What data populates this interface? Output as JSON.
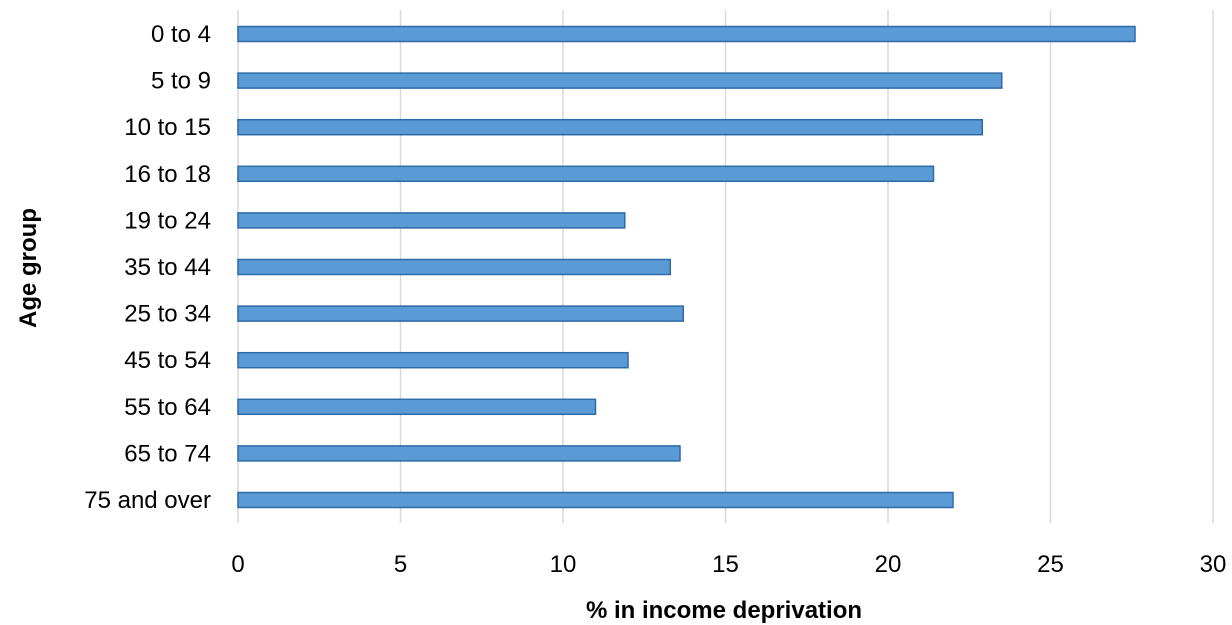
{
  "chart_data": {
    "type": "bar",
    "orientation": "horizontal",
    "categories": [
      "0 to 4",
      "5 to 9",
      "10 to 15",
      "16 to 18",
      "19 to 24",
      "35 to 44",
      "25 to 34",
      "45 to 54",
      "55 to 64",
      "65 to 74",
      "75 and over"
    ],
    "values": [
      27.6,
      23.5,
      22.9,
      21.4,
      11.9,
      13.3,
      13.7,
      12.0,
      11.0,
      13.6,
      22.0
    ],
    "xlabel": "% in income deprivation",
    "ylabel": "Age group",
    "xlim": [
      0,
      30
    ],
    "xticks": [
      "0",
      "5",
      "10",
      "15",
      "20",
      "25",
      "30"
    ],
    "grid": "vertical gridlines",
    "legend": "none",
    "colors": {
      "bar_fill": "#5b9bd5",
      "bar_stroke": "#2e6aa8",
      "grid": "#d9d9d9"
    }
  }
}
